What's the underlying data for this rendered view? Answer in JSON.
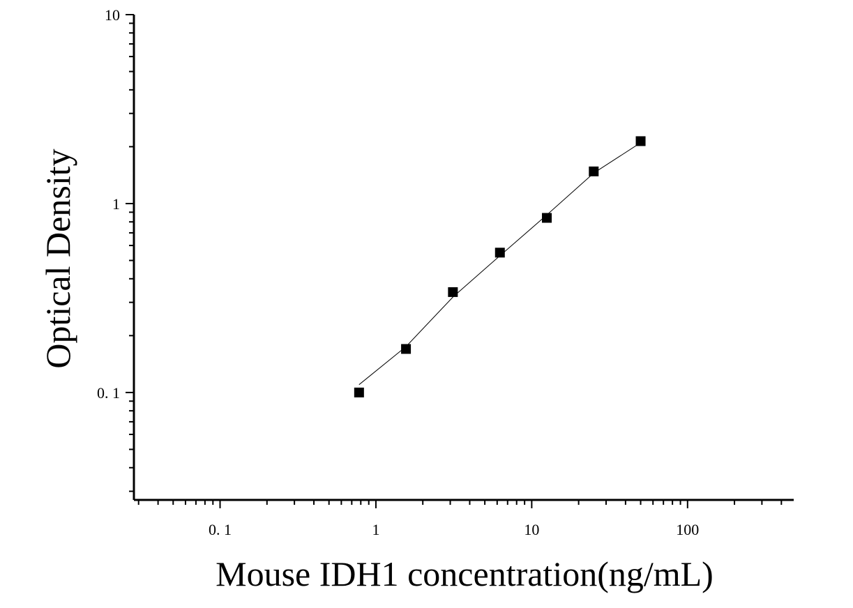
{
  "chart_data": {
    "type": "scatter",
    "x_scale": "log",
    "y_scale": "log",
    "xlabel": "Mouse IDH1 concentration(ng/mL)",
    "ylabel": "Optical Density",
    "xlim": [
      0.028,
      480
    ],
    "ylim": [
      0.027,
      10
    ],
    "x_ticks": [
      {
        "value": 0.1,
        "label": "0. 1"
      },
      {
        "value": 1,
        "label": "1"
      },
      {
        "value": 10,
        "label": "10"
      },
      {
        "value": 100,
        "label": "100"
      }
    ],
    "y_ticks": [
      {
        "value": 0.1,
        "label": "0. 1"
      },
      {
        "value": 1,
        "label": "1"
      },
      {
        "value": 10,
        "label": "10"
      }
    ],
    "points": [
      {
        "x": 0.78,
        "y": 0.1
      },
      {
        "x": 1.56,
        "y": 0.17
      },
      {
        "x": 3.12,
        "y": 0.34
      },
      {
        "x": 6.25,
        "y": 0.55
      },
      {
        "x": 12.5,
        "y": 0.84
      },
      {
        "x": 25,
        "y": 1.48
      },
      {
        "x": 50,
        "y": 2.14
      }
    ],
    "fit_curve": [
      {
        "x": 0.78,
        "y": 0.11
      },
      {
        "x": 1.56,
        "y": 0.175
      },
      {
        "x": 3.12,
        "y": 0.32
      },
      {
        "x": 6.25,
        "y": 0.53
      },
      {
        "x": 12.5,
        "y": 0.87
      },
      {
        "x": 25,
        "y": 1.45
      },
      {
        "x": 50,
        "y": 2.1
      }
    ],
    "marker": "square",
    "color": "#000000",
    "grid": false,
    "legend": "none"
  }
}
